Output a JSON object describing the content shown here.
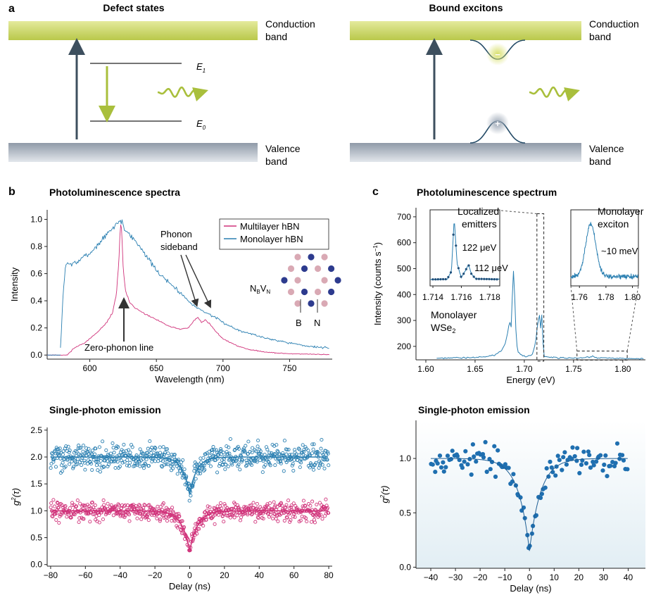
{
  "panel_labels": {
    "a": "a",
    "b": "b",
    "c": "c"
  },
  "panel_a": {
    "defect": {
      "title": "Defect states",
      "conduction": [
        "Conduction",
        "band"
      ],
      "valence": [
        "Valence",
        "band"
      ],
      "e1": "E",
      "e1_sub": "1",
      "e0": "E",
      "e0_sub": "0"
    },
    "exciton": {
      "title": "Bound excitons",
      "conduction": [
        "Conduction",
        "band"
      ],
      "valence": [
        "Valence",
        "band"
      ],
      "minus": "−",
      "plus": "+"
    },
    "colors": {
      "band_green": "#c8d45a",
      "band_grey": "#8c99a8",
      "arrow": "#3d4f5e",
      "photon": "#a9bf3c"
    }
  },
  "chart_data": [
    {
      "id": "hbn_pl",
      "type": "line",
      "title": "Photoluminescence spectra",
      "xlabel": "Wavelength (nm)",
      "ylabel": "Intensity",
      "xlim": [
        568,
        782
      ],
      "ylim": [
        -0.03,
        1.07
      ],
      "xticks": [
        600,
        650,
        700,
        750
      ],
      "yticks": [
        0.0,
        0.2,
        0.4,
        0.6,
        0.8,
        1.0
      ],
      "series": [
        {
          "name": "Multilayer hBN",
          "color": "#d0327a",
          "x": [
            568,
            578,
            583,
            588,
            592,
            596,
            600,
            606,
            612,
            617,
            620,
            622,
            623,
            624,
            625,
            627,
            630,
            635,
            640,
            650,
            660,
            668,
            674,
            678,
            681,
            684,
            687,
            690,
            694,
            700,
            710,
            720,
            730,
            740,
            750,
            760,
            770,
            780
          ],
          "y": [
            0.0,
            0.0,
            0.0,
            0.05,
            0.07,
            0.09,
            0.12,
            0.17,
            0.23,
            0.31,
            0.45,
            0.72,
            0.97,
            0.92,
            0.65,
            0.46,
            0.39,
            0.34,
            0.31,
            0.26,
            0.21,
            0.19,
            0.2,
            0.25,
            0.28,
            0.24,
            0.26,
            0.23,
            0.18,
            0.12,
            0.07,
            0.04,
            0.025,
            0.015,
            0.01,
            0.008,
            0.005,
            0.004
          ]
        },
        {
          "name": "Monolayer hBN",
          "color": "#2a7fb1",
          "x": [
            568,
            576,
            578,
            580,
            582,
            585,
            590,
            595,
            600,
            605,
            610,
            615,
            618,
            620,
            622,
            624,
            626,
            630,
            640,
            650,
            660,
            670,
            680,
            690,
            700,
            710,
            720,
            730,
            740,
            750,
            760,
            770,
            780
          ],
          "y": [
            0.0,
            0.0,
            0.05,
            0.45,
            0.68,
            0.67,
            0.68,
            0.72,
            0.75,
            0.8,
            0.86,
            0.91,
            0.94,
            0.97,
            0.99,
            0.98,
            0.93,
            0.89,
            0.77,
            0.62,
            0.53,
            0.44,
            0.35,
            0.3,
            0.24,
            0.19,
            0.16,
            0.13,
            0.11,
            0.09,
            0.07,
            0.06,
            0.05
          ]
        }
      ],
      "annotations": {
        "zero_phonon": "Zero-phonon line",
        "phonon": [
          "Phonon",
          "sideband"
        ],
        "defect_label": {
          "n": "N",
          "n_sub": "B",
          "v": "V",
          "v_sub": "N"
        },
        "atom_b": "B",
        "atom_n": "N"
      },
      "legend": "top-right"
    },
    {
      "id": "hbn_g2",
      "type": "scatter",
      "title": "Single-photon emission",
      "xlabel": "Delay (ns)",
      "ylabel": "g²(τ)",
      "ylabel_base": "g",
      "ylabel_sup": "2",
      "ylabel_arg": "(τ)",
      "xlim": [
        -82,
        82
      ],
      "ylim": [
        -0.03,
        2.55
      ],
      "xticks": [
        -80,
        -60,
        -40,
        -20,
        0,
        20,
        40,
        60,
        80
      ],
      "yticks": [
        0.0,
        0.5,
        1.0,
        1.5,
        2.0,
        2.5
      ],
      "series": [
        {
          "name": "",
          "color": "#2a7fb1",
          "baseline": 2.0,
          "dip_min": 1.3,
          "tau_ns": 4.0,
          "noise": 0.17
        },
        {
          "name": "",
          "color": "#d0327a",
          "baseline": 1.0,
          "dip_min": 0.25,
          "tau_ns": 4.5,
          "noise": 0.12
        }
      ]
    },
    {
      "id": "wse2_pl",
      "type": "line",
      "title": "Photoluminescence spectrum",
      "xlabel": "Energy (eV)",
      "ylabel": "Intensity (counts s⁻¹)",
      "ylabel_main": "Intensity (counts s",
      "ylabel_sup": "−1",
      "ylabel_end": ")",
      "xlim": [
        1.59,
        1.823
      ],
      "ylim": [
        148,
        735
      ],
      "xticks": [
        1.6,
        1.65,
        1.7,
        1.75,
        1.8
      ],
      "xtick_labels": [
        "1.60",
        "1.65",
        "1.70",
        "1.75",
        "1.80"
      ],
      "yticks": [
        200,
        300,
        400,
        500,
        600,
        700
      ],
      "series": [
        {
          "name": "",
          "color": "#2a7fb1",
          "x": [
            1.611,
            1.62,
            1.63,
            1.64,
            1.65,
            1.66,
            1.665,
            1.67,
            1.675,
            1.678,
            1.681,
            1.683,
            1.685,
            1.687,
            1.688,
            1.6895,
            1.69,
            1.691,
            1.692,
            1.694,
            1.698,
            1.702,
            1.705,
            1.708,
            1.71,
            1.712,
            1.714,
            1.715,
            1.7158,
            1.7165,
            1.7175,
            1.7185,
            1.7195,
            1.72,
            1.725,
            1.73,
            1.74,
            1.75,
            1.76,
            1.765,
            1.768,
            1.772,
            1.78,
            1.79,
            1.8,
            1.81,
            1.822
          ],
          "y": [
            155,
            154,
            156,
            155,
            157,
            160,
            163,
            168,
            176,
            190,
            215,
            250,
            300,
            270,
            420,
            525,
            420,
            300,
            210,
            175,
            165,
            160,
            162,
            168,
            190,
            230,
            310,
            250,
            390,
            260,
            360,
            240,
            180,
            162,
            158,
            157,
            155,
            154,
            156,
            158,
            160,
            157,
            155,
            154,
            153,
            152,
            153
          ]
        }
      ],
      "annotations": {
        "localized": [
          "Localized",
          "emitters"
        ],
        "monolayer_exciton": [
          "Monolayer",
          "exciton"
        ],
        "material": [
          "Monolayer",
          "WSe"
        ],
        "material_sub": "2"
      },
      "insets": [
        {
          "id": "inset1",
          "xlim": [
            1.7138,
            1.7187
          ],
          "xticks": [
            1.714,
            1.716,
            1.718
          ],
          "xtick_labels": [
            "1.714",
            "1.716",
            "1.718"
          ],
          "labels": [
            "122 μeV",
            "112 μeV"
          ]
        },
        {
          "id": "inset2",
          "xlim": [
            1.7535,
            1.8045
          ],
          "xticks": [
            1.76,
            1.78,
            1.8
          ],
          "xtick_labels": [
            "1.76",
            "1.78",
            "1.80"
          ],
          "labels": [
            "~10 meV"
          ]
        }
      ]
    },
    {
      "id": "wse2_g2",
      "type": "scatter",
      "title": "Single-photon emission",
      "xlabel": "Delay (ns)",
      "ylabel": "g²(τ)",
      "ylabel_base": "g",
      "ylabel_sup": "2",
      "ylabel_arg": "(τ)",
      "xlim": [
        -46,
        47
      ],
      "ylim": [
        -0.01,
        1.35
      ],
      "xticks": [
        -40,
        -30,
        -20,
        -10,
        0,
        10,
        20,
        30,
        40
      ],
      "yticks": [
        0.0,
        0.5,
        1.0
      ],
      "ytick_labels": [
        "0.0",
        "0.5",
        "1.0"
      ],
      "series": [
        {
          "name": "",
          "color": "#1f6fb0",
          "baseline": 1.0,
          "dip_min": 0.15,
          "tau_ns": 4.5,
          "noise": 0.09
        }
      ]
    }
  ]
}
